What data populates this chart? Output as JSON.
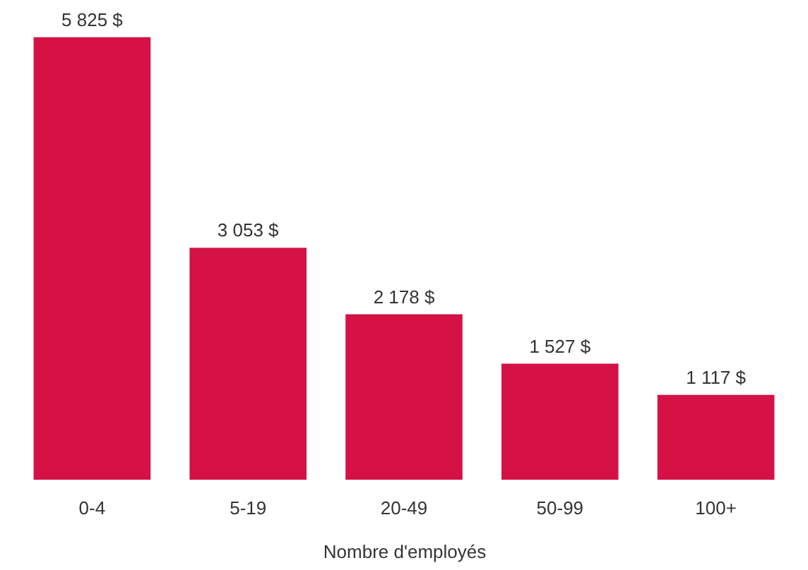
{
  "chart_data": {
    "type": "bar",
    "xlabel": "Nombre d'employés",
    "categories": [
      "0-4",
      "5-19",
      "20-49",
      "50-99",
      "100+"
    ],
    "values": [
      5825,
      3053,
      2178,
      1527,
      1117
    ],
    "value_labels": [
      "5 825 $",
      "3 053 $",
      "2 178 $",
      "1 527 $",
      "1 117 $"
    ],
    "color": "#d41245",
    "grid": false
  }
}
